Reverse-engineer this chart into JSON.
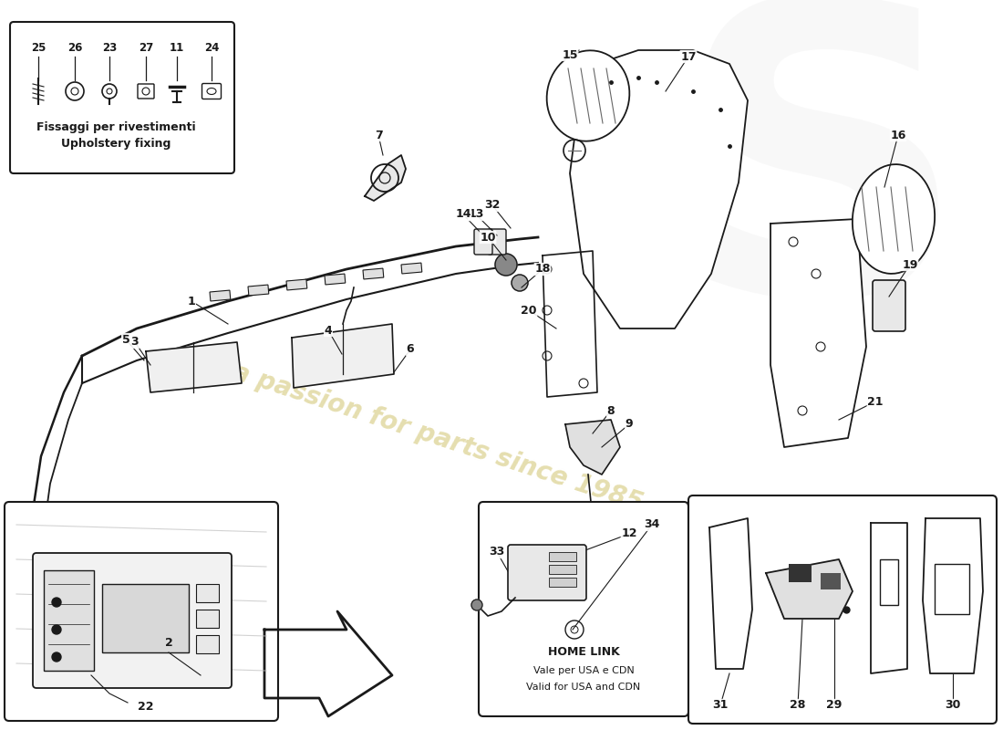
{
  "bg_color": "#ffffff",
  "line_color": "#1a1a1a",
  "watermark_text": "a passion for parts since 1985",
  "watermark_color": "#d4c87a",
  "box_text_italian": "Fissaggi per rivestimenti",
  "box_text_english": "Upholstery fixing",
  "homelink_text1": "HOME LINK",
  "homelink_text2": "Vale per USA e CDN",
  "homelink_text3": "Valid for USA and CDN",
  "fastener_nums": [
    "25",
    "26",
    "23",
    "27",
    "11",
    "24"
  ]
}
